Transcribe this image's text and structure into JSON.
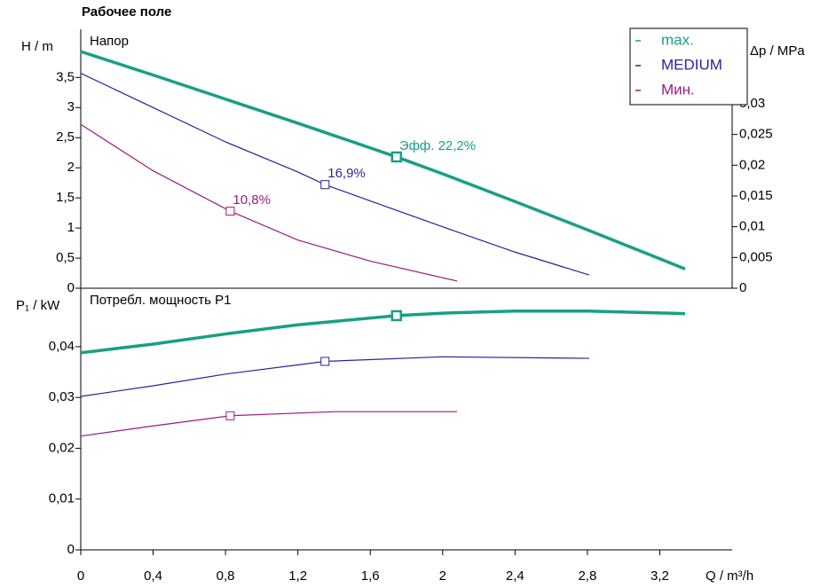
{
  "title": "Рабочее поле",
  "chart_data": [
    {
      "type": "line",
      "panel_label": "Напор",
      "ylabel": "H / m",
      "y2label": "Δp / MPa",
      "legend": "top-right",
      "xlim": [
        0,
        3.6
      ],
      "ylim": [
        0,
        4.3
      ],
      "yticks": [
        0,
        {
          "value": 0.5,
          "label": "0,5"
        },
        1,
        {
          "value": 1.5,
          "label": "1,5"
        },
        2,
        {
          "value": 2.5,
          "label": "2,5"
        },
        3,
        {
          "value": 3.5,
          "label": "3,5"
        }
      ],
      "y2lim": [
        0,
        0.0421
      ],
      "y2ticks": [
        0,
        {
          "value": 0.005,
          "label": "0,005"
        },
        {
          "value": 0.01,
          "label": "0,01"
        },
        {
          "value": 0.015,
          "label": "0,015"
        },
        {
          "value": 0.02,
          "label": "0,02"
        },
        {
          "value": 0.025,
          "label": "0,025"
        },
        {
          "value": 0.03,
          "label": "0,03"
        }
      ],
      "series": [
        {
          "name": "max.",
          "color": "#17a085",
          "line_width": 3.5,
          "x": [
            0,
            0.4,
            0.8,
            1.2,
            1.6,
            1.745,
            2.0,
            2.4,
            2.8,
            3.2,
            3.34
          ],
          "values": [
            3.93,
            3.54,
            3.14,
            2.74,
            2.33,
            2.18,
            1.9,
            1.44,
            0.97,
            0.49,
            0.32
          ],
          "marker": {
            "x": 1.745,
            "value": 2.18,
            "label": "Эфф.  22,2%"
          }
        },
        {
          "name": "MEDIUM",
          "color": "#2e1f9c",
          "line_width": 1.2,
          "x": [
            0,
            0.4,
            0.8,
            1.2,
            1.35,
            1.6,
            2.0,
            2.4,
            2.81
          ],
          "values": [
            3.57,
            3.0,
            2.43,
            1.93,
            1.72,
            1.45,
            1.02,
            0.6,
            0.22
          ],
          "marker": {
            "x": 1.35,
            "value": 1.72,
            "label": "16,9%"
          }
        },
        {
          "name": "Мин.",
          "color": "#9c1a80",
          "line_width": 1.2,
          "x": [
            0,
            0.4,
            0.826,
            1.2,
            1.6,
            2.08
          ],
          "values": [
            2.72,
            1.95,
            1.28,
            0.8,
            0.45,
            0.12
          ],
          "marker": {
            "x": 0.826,
            "value": 1.28,
            "label": "10,8%"
          }
        }
      ]
    },
    {
      "type": "line",
      "panel_label": "Потребл. мощность P1",
      "ylabel": "P₁ / kW",
      "xlabel": "Q / m³/h",
      "xlim": [
        0,
        3.6
      ],
      "ylim": [
        0,
        0.0515
      ],
      "xticks": [
        0,
        {
          "value": 0.4,
          "label": "0,4"
        },
        {
          "value": 0.8,
          "label": "0,8"
        },
        {
          "value": 1.2,
          "label": "1,2"
        },
        {
          "value": 1.6,
          "label": "1,6"
        },
        2,
        {
          "value": 2.4,
          "label": "2,4"
        },
        {
          "value": 2.8,
          "label": "2,8"
        },
        {
          "value": 3.2,
          "label": "3,2"
        }
      ],
      "yticks": [
        0,
        {
          "value": 0.01,
          "label": "0,01"
        },
        {
          "value": 0.02,
          "label": "0,02"
        },
        {
          "value": 0.03,
          "label": "0,03"
        },
        {
          "value": 0.04,
          "label": "0,04"
        }
      ],
      "series": [
        {
          "name": "max.",
          "color": "#17a085",
          "line_width": 3.5,
          "x": [
            0,
            0.4,
            0.8,
            1.2,
            1.745,
            2.0,
            2.4,
            2.8,
            3.34
          ],
          "values": [
            0.0388,
            0.0405,
            0.0425,
            0.0443,
            0.0461,
            0.0466,
            0.047,
            0.047,
            0.0465
          ],
          "marker": {
            "x": 1.745,
            "value": 0.0461
          }
        },
        {
          "name": "MEDIUM",
          "color": "#2e1f9c",
          "line_width": 1.2,
          "x": [
            0,
            0.4,
            0.8,
            1.35,
            2.0,
            2.81
          ],
          "values": [
            0.0302,
            0.0323,
            0.0346,
            0.0371,
            0.038,
            0.0377
          ],
          "marker": {
            "x": 1.35,
            "value": 0.0371
          }
        },
        {
          "name": "Мин.",
          "color": "#9c1a80",
          "line_width": 1.2,
          "x": [
            0,
            0.4,
            0.826,
            1.4,
            2.08
          ],
          "values": [
            0.0224,
            0.0244,
            0.0264,
            0.0272,
            0.0272
          ],
          "marker": {
            "x": 0.826,
            "value": 0.0264
          }
        }
      ]
    }
  ]
}
